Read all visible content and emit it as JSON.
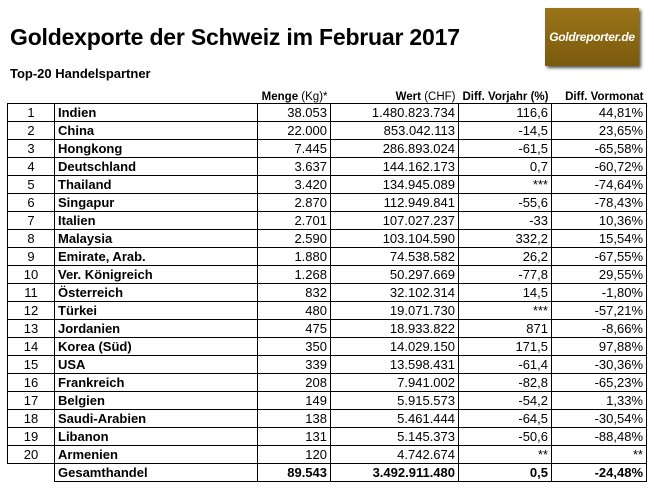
{
  "title": "Goldexporte der Schweiz im Februar 2017",
  "subtitle": "Top-20 Handelspartner",
  "logo": "Goldreporter.de",
  "headers": {
    "menge": "Menge",
    "menge_unit": "(Kg)*",
    "wert": "Wert",
    "wert_unit": "(CHF)",
    "vorjahr": "Diff. Vorjahr (%)",
    "vormonat": "Diff. Vormonat"
  },
  "rows": [
    {
      "rank": "1",
      "country": "Indien",
      "menge": "38.053",
      "wert": "1.480.823.734",
      "vorjahr": "116,6",
      "vormonat": "44,81%"
    },
    {
      "rank": "2",
      "country": "China",
      "menge": "22.000",
      "wert": "853.042.113",
      "vorjahr": "-14,5",
      "vormonat": "23,65%"
    },
    {
      "rank": "3",
      "country": "Hongkong",
      "menge": "7.445",
      "wert": "286.893.024",
      "vorjahr": "-61,5",
      "vormonat": "-65,58%"
    },
    {
      "rank": "4",
      "country": "Deutschland",
      "menge": "3.637",
      "wert": "144.162.173",
      "vorjahr": "0,7",
      "vormonat": "-60,72%"
    },
    {
      "rank": "5",
      "country": "Thailand",
      "menge": "3.420",
      "wert": "134.945.089",
      "vorjahr": "***",
      "vormonat": "-74,64%"
    },
    {
      "rank": "6",
      "country": "Singapur",
      "menge": "2.870",
      "wert": "112.949.841",
      "vorjahr": "-55,6",
      "vormonat": "-78,43%"
    },
    {
      "rank": "7",
      "country": "Italien",
      "menge": "2.701",
      "wert": "107.027.237",
      "vorjahr": "-33",
      "vormonat": "10,36%"
    },
    {
      "rank": "8",
      "country": "Malaysia",
      "menge": "2.590",
      "wert": "103.104.590",
      "vorjahr": "332,2",
      "vormonat": "15,54%"
    },
    {
      "rank": "9",
      "country": "Emirate, Arab.",
      "menge": "1.880",
      "wert": "74.538.582",
      "vorjahr": "26,2",
      "vormonat": "-67,55%"
    },
    {
      "rank": "10",
      "country": "Ver. Königreich",
      "menge": "1.268",
      "wert": "50.297.669",
      "vorjahr": "-77,8",
      "vormonat": "29,55%"
    },
    {
      "rank": "11",
      "country": "Österreich",
      "menge": "832",
      "wert": "32.102.314",
      "vorjahr": "14,5",
      "vormonat": "-1,80%"
    },
    {
      "rank": "12",
      "country": "Türkei",
      "menge": "480",
      "wert": "19.071.730",
      "vorjahr": "***",
      "vormonat": "-57,21%"
    },
    {
      "rank": "13",
      "country": "Jordanien",
      "menge": "475",
      "wert": "18.933.822",
      "vorjahr": "871",
      "vormonat": "-8,66%"
    },
    {
      "rank": "14",
      "country": "Korea (Süd)",
      "menge": "350",
      "wert": "14.029.150",
      "vorjahr": "171,5",
      "vormonat": "97,88%"
    },
    {
      "rank": "15",
      "country": "USA",
      "menge": "339",
      "wert": "13.598.431",
      "vorjahr": "-61,4",
      "vormonat": "-30,36%"
    },
    {
      "rank": "16",
      "country": "Frankreich",
      "menge": "208",
      "wert": "7.941.002",
      "vorjahr": "-82,8",
      "vormonat": "-65,23%"
    },
    {
      "rank": "17",
      "country": "Belgien",
      "menge": "149",
      "wert": "5.915.573",
      "vorjahr": "-54,2",
      "vormonat": "1,33%"
    },
    {
      "rank": "18",
      "country": "Saudi-Arabien",
      "menge": "138",
      "wert": "5.461.444",
      "vorjahr": "-64,5",
      "vormonat": "-30,54%"
    },
    {
      "rank": "19",
      "country": "Libanon",
      "menge": "131",
      "wert": "5.145.373",
      "vorjahr": "-50,6",
      "vormonat": "-88,48%"
    },
    {
      "rank": "20",
      "country": "Armenien",
      "menge": "120",
      "wert": "4.742.674",
      "vorjahr": "**",
      "vormonat": "**"
    }
  ],
  "total": {
    "label": "Gesamthandel",
    "menge": "89.543",
    "wert": "3.492.911.480",
    "vorjahr": "0,5",
    "vormonat": "-24,48%"
  }
}
